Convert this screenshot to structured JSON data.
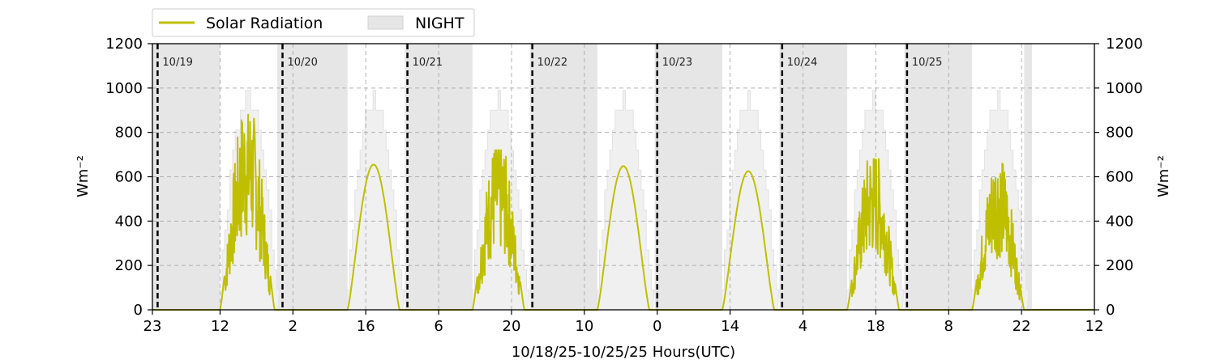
{
  "chart_data": {
    "type": "line",
    "xlabel": "10/18/25-10/25/25  Hours(UTC)",
    "ylabel_left": "Wm⁻²",
    "ylabel_right": "Wm⁻²",
    "ylim": [
      0,
      1200
    ],
    "yticks": [
      0,
      200,
      400,
      600,
      800,
      1000,
      1200
    ],
    "xlim_hours": [
      0,
      181
    ],
    "xticks": [
      {
        "hour": 0,
        "label": "23"
      },
      {
        "hour": 13,
        "label": "12"
      },
      {
        "hour": 27,
        "label": "2"
      },
      {
        "hour": 41,
        "label": "16"
      },
      {
        "hour": 55,
        "label": "6"
      },
      {
        "hour": 69,
        "label": "20"
      },
      {
        "hour": 83,
        "label": "10"
      },
      {
        "hour": 97,
        "label": "0"
      },
      {
        "hour": 111,
        "label": "14"
      },
      {
        "hour": 125,
        "label": "4"
      },
      {
        "hour": 139,
        "label": "18"
      },
      {
        "hour": 153,
        "label": "8"
      },
      {
        "hour": 167,
        "label": "22"
      },
      {
        "hour": 181,
        "label": "12"
      }
    ],
    "grid": "dashed",
    "legend_position": "top-left, above plot",
    "legend": [
      {
        "name": "Solar Radiation",
        "kind": "line",
        "color": "#bfbf00"
      },
      {
        "name": "NIGHT",
        "kind": "patch",
        "color": "#e6e6e6"
      }
    ],
    "day_boundaries": [
      {
        "hour": 1,
        "label": "10/19"
      },
      {
        "hour": 25,
        "label": "10/20"
      },
      {
        "hour": 49,
        "label": "10/21"
      },
      {
        "hour": 73,
        "label": "10/22"
      },
      {
        "hour": 97,
        "label": "10/23"
      },
      {
        "hour": 121,
        "label": "10/24"
      },
      {
        "hour": 145,
        "label": "10/25"
      }
    ],
    "night_intervals": [
      [
        0,
        13
      ],
      [
        24,
        37.5
      ],
      [
        48.5,
        61.5
      ],
      [
        72.5,
        85.5
      ],
      [
        96.5,
        109.5
      ],
      [
        120.5,
        133.5
      ],
      [
        144.5,
        157.5
      ],
      [
        167.5,
        169
      ]
    ],
    "clear_sky_max": 950,
    "series": [
      {
        "name": "Solar Radiation",
        "color": "#bfbf00",
        "days": [
          {
            "sunrise": 13,
            "sunset": 23.5,
            "peak": 880,
            "cloudy": true
          },
          {
            "sunrise": 37.5,
            "sunset": 47.5,
            "peak": 655,
            "cloudy": false
          },
          {
            "sunrise": 61.5,
            "sunset": 71.5,
            "peak": 720,
            "cloudy": true
          },
          {
            "sunrise": 85.5,
            "sunset": 95.5,
            "peak": 648,
            "cloudy": false
          },
          {
            "sunrise": 109.5,
            "sunset": 119.5,
            "peak": 625,
            "cloudy": false
          },
          {
            "sunrise": 133.5,
            "sunset": 143.5,
            "peak": 680,
            "cloudy": true
          },
          {
            "sunrise": 157.5,
            "sunset": 167.5,
            "peak": 660,
            "cloudy": true
          }
        ]
      }
    ]
  }
}
